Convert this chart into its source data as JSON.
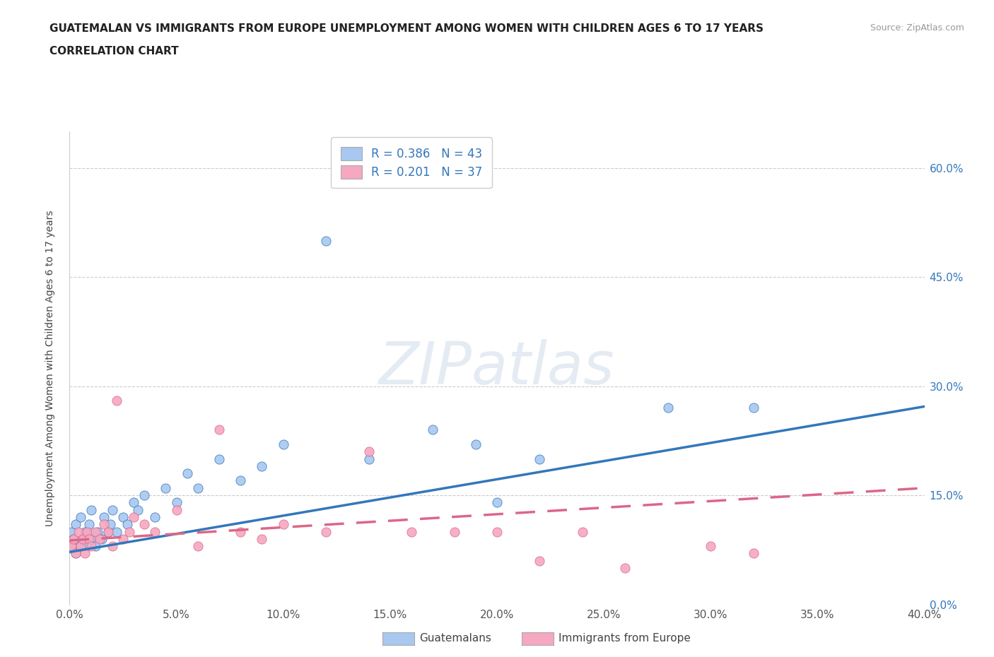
{
  "title_line1": "GUATEMALAN VS IMMIGRANTS FROM EUROPE UNEMPLOYMENT AMONG WOMEN WITH CHILDREN AGES 6 TO 17 YEARS",
  "title_line2": "CORRELATION CHART",
  "source_text": "Source: ZipAtlas.com",
  "xlim": [
    0.0,
    0.4
  ],
  "ylim": [
    0.0,
    0.65
  ],
  "ytick_vals": [
    0.0,
    0.15,
    0.3,
    0.45,
    0.6
  ],
  "xtick_vals": [
    0.0,
    0.05,
    0.1,
    0.15,
    0.2,
    0.25,
    0.3,
    0.35,
    0.4
  ],
  "r1": 0.386,
  "n1": 43,
  "r2": 0.201,
  "n2": 37,
  "legend_label1": "Guatemalans",
  "legend_label2": "Immigrants from Europe",
  "color1": "#a8c8f0",
  "color2": "#f5a8c0",
  "trend_color1": "#3377bb",
  "trend_color2": "#dd6688",
  "watermark": "ZIPatlas",
  "guatemalan_x": [
    0.001,
    0.001,
    0.002,
    0.003,
    0.003,
    0.005,
    0.005,
    0.006,
    0.007,
    0.008,
    0.009,
    0.01,
    0.01,
    0.012,
    0.013,
    0.015,
    0.016,
    0.018,
    0.019,
    0.02,
    0.022,
    0.025,
    0.027,
    0.03,
    0.032,
    0.035,
    0.04,
    0.045,
    0.05,
    0.055,
    0.06,
    0.07,
    0.08,
    0.09,
    0.1,
    0.12,
    0.14,
    0.17,
    0.19,
    0.2,
    0.22,
    0.28,
    0.32
  ],
  "guatemalan_y": [
    0.08,
    0.1,
    0.09,
    0.07,
    0.11,
    0.08,
    0.12,
    0.09,
    0.1,
    0.08,
    0.11,
    0.09,
    0.13,
    0.08,
    0.1,
    0.09,
    0.12,
    0.1,
    0.11,
    0.13,
    0.1,
    0.12,
    0.11,
    0.14,
    0.13,
    0.15,
    0.12,
    0.16,
    0.14,
    0.18,
    0.16,
    0.2,
    0.17,
    0.19,
    0.22,
    0.5,
    0.2,
    0.24,
    0.22,
    0.14,
    0.2,
    0.27,
    0.27
  ],
  "europe_x": [
    0.001,
    0.002,
    0.003,
    0.004,
    0.005,
    0.006,
    0.007,
    0.008,
    0.009,
    0.01,
    0.012,
    0.014,
    0.016,
    0.018,
    0.02,
    0.022,
    0.025,
    0.028,
    0.03,
    0.035,
    0.04,
    0.05,
    0.06,
    0.07,
    0.08,
    0.09,
    0.1,
    0.12,
    0.14,
    0.16,
    0.18,
    0.2,
    0.22,
    0.24,
    0.26,
    0.3,
    0.32
  ],
  "europe_y": [
    0.08,
    0.09,
    0.07,
    0.1,
    0.08,
    0.09,
    0.07,
    0.1,
    0.09,
    0.08,
    0.1,
    0.09,
    0.11,
    0.1,
    0.08,
    0.28,
    0.09,
    0.1,
    0.12,
    0.11,
    0.1,
    0.13,
    0.08,
    0.24,
    0.1,
    0.09,
    0.11,
    0.1,
    0.21,
    0.1,
    0.1,
    0.1,
    0.06,
    0.1,
    0.05,
    0.08,
    0.07
  ],
  "trend1_x0": 0.0,
  "trend1_y0": 0.072,
  "trend1_x1": 0.4,
  "trend1_y1": 0.272,
  "trend2_x0": 0.0,
  "trend2_y0": 0.088,
  "trend2_x1": 0.4,
  "trend2_y1": 0.16
}
